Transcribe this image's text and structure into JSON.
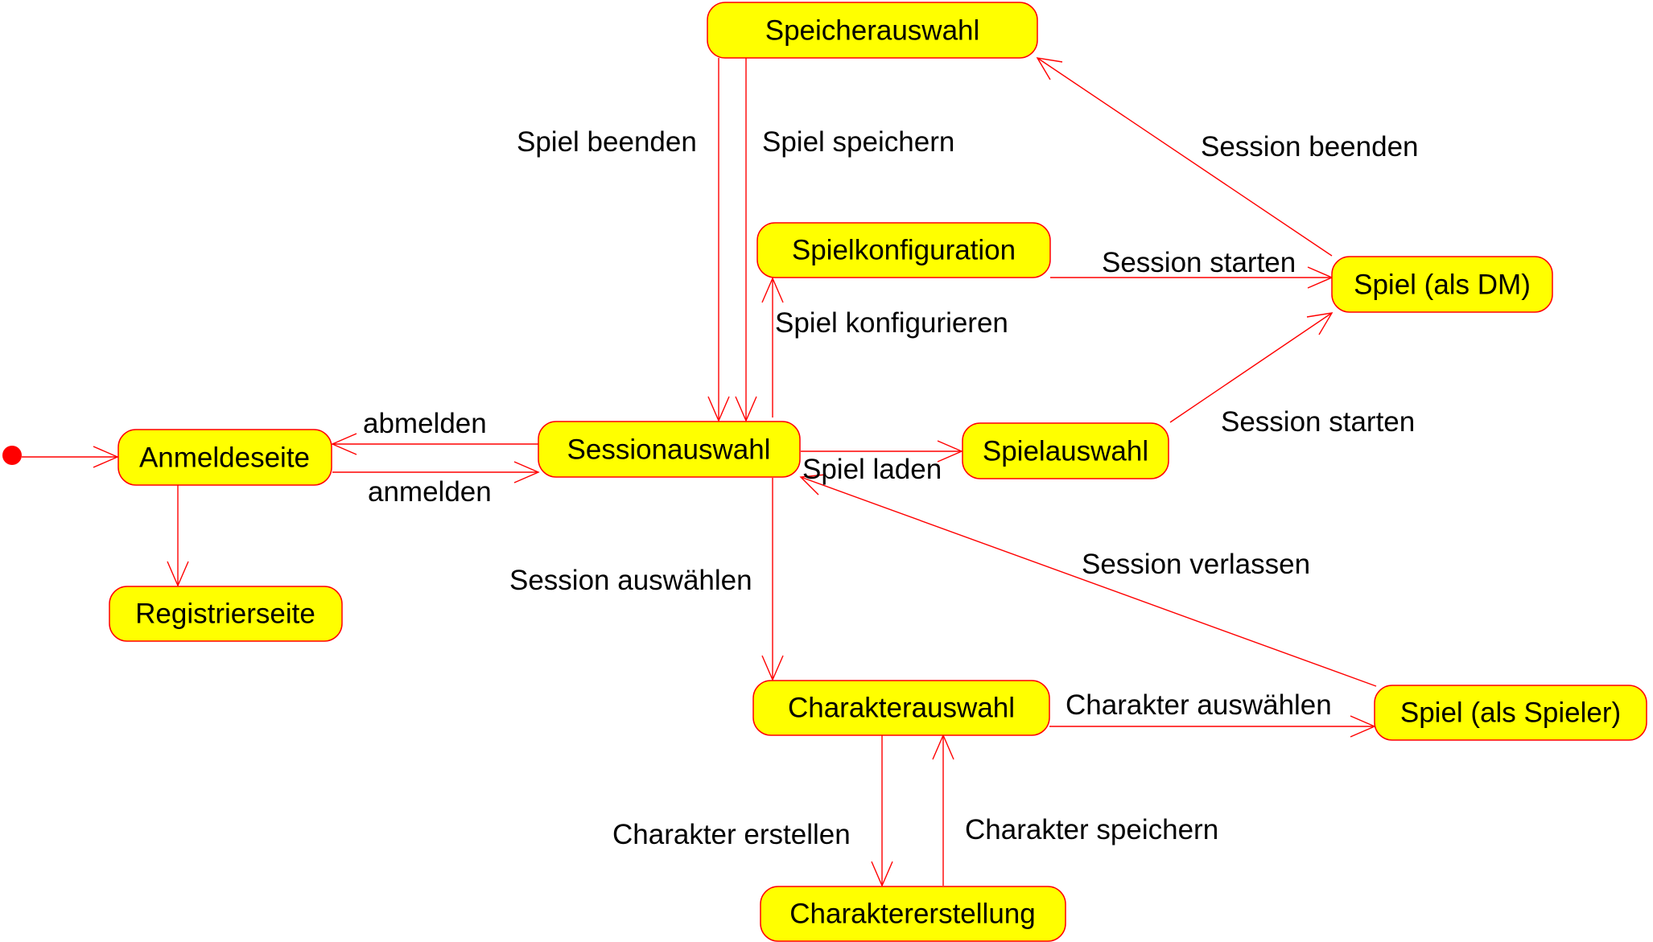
{
  "diagram": {
    "type": "state-diagram",
    "colors": {
      "state_fill": "#ffff00",
      "state_border": "#ff0000",
      "edge": "#ff0000",
      "start": "#ff0000",
      "text": "#000000"
    },
    "states": {
      "speicherauswahl": "Speicherauswahl",
      "spielkonfiguration": "Spielkonfiguration",
      "spiel_dm": "Spiel (als DM)",
      "anmeldeseite": "Anmeldeseite",
      "sessionauswahl": "Sessionauswahl",
      "spielauswahl": "Spielauswahl",
      "registrierseite": "Registrierseite",
      "charakterauswahl": "Charakterauswahl",
      "spiel_spieler": "Spiel (als Spieler)",
      "charaktererstellung": "Charaktererstellung"
    },
    "transitions": {
      "spiel_beenden": "Spiel beenden",
      "spiel_speichern": "Spiel speichern",
      "session_beenden": "Session beenden",
      "session_starten_1": "Session starten",
      "spiel_konfigurieren": "Spiel konfigurieren",
      "abmelden": "abmelden",
      "anmelden": "anmelden",
      "session_starten_2": "Session starten",
      "spiel_laden": "Spiel laden",
      "session_verlassen": "Session verlassen",
      "session_auswaehlen": "Session auswählen",
      "charakter_auswaehlen": "Charakter auswählen",
      "charakter_erstellen": "Charakter erstellen",
      "charakter_speichern": "Charakter speichern"
    }
  }
}
